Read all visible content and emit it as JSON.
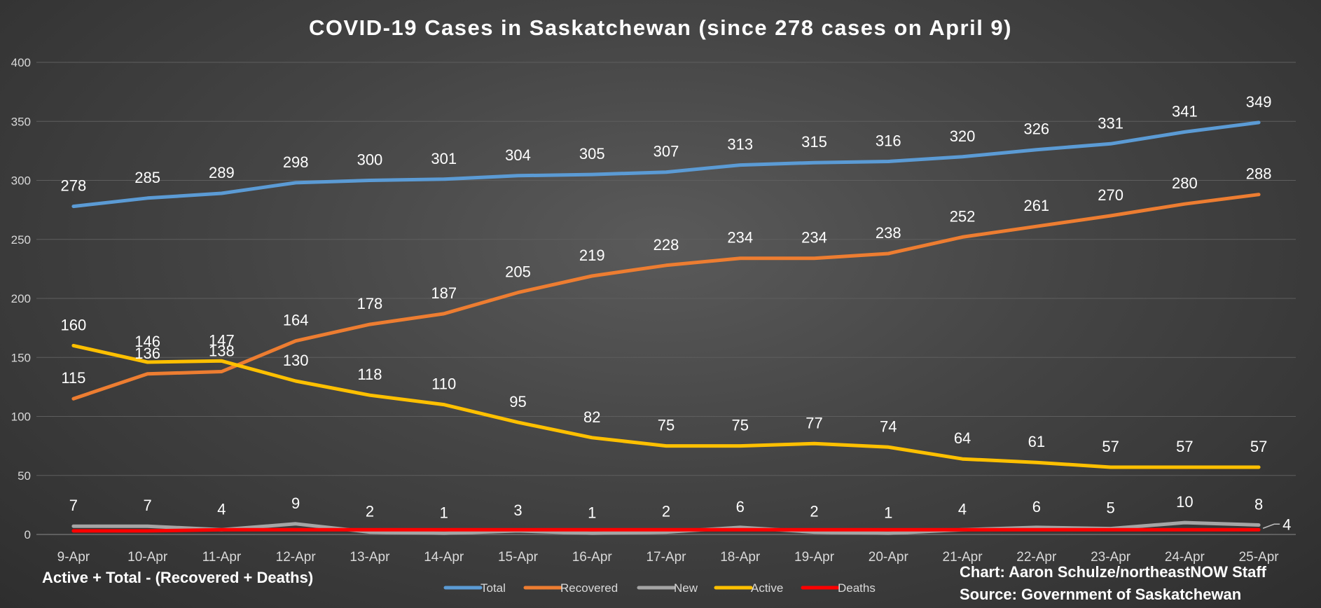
{
  "chart_data": {
    "type": "line",
    "title": "COVID-19 Cases in Saskatchewan (since 278 cases on April 9)",
    "xlabel": "",
    "ylabel": "",
    "ylim": [
      0,
      400
    ],
    "y_ticks": [
      0,
      50,
      100,
      150,
      200,
      250,
      300,
      350,
      400
    ],
    "grid": true,
    "legend_position": "bottom",
    "categories": [
      "9-Apr",
      "10-Apr",
      "11-Apr",
      "12-Apr",
      "13-Apr",
      "14-Apr",
      "15-Apr",
      "16-Apr",
      "17-Apr",
      "18-Apr",
      "19-Apr",
      "20-Apr",
      "21-Apr",
      "22-Apr",
      "23-Apr",
      "24-Apr",
      "25-Apr"
    ],
    "series": [
      {
        "name": "Total",
        "color": "#5b9bd5",
        "labels": "above",
        "values": [
          278,
          285,
          289,
          298,
          300,
          301,
          304,
          305,
          307,
          313,
          315,
          316,
          320,
          326,
          331,
          341,
          349
        ]
      },
      {
        "name": "Recovered",
        "color": "#ed7d31",
        "labels": "above",
        "values": [
          115,
          136,
          138,
          164,
          178,
          187,
          205,
          219,
          228,
          234,
          234,
          238,
          252,
          261,
          270,
          280,
          288
        ]
      },
      {
        "name": "New",
        "color": "#a5a5a5",
        "labels": "above",
        "values": [
          7,
          7,
          4,
          9,
          2,
          1,
          3,
          1,
          2,
          6,
          2,
          1,
          4,
          6,
          5,
          10,
          8
        ]
      },
      {
        "name": "Active",
        "color": "#ffc000",
        "labels": "above",
        "values": [
          160,
          146,
          147,
          130,
          118,
          110,
          95,
          82,
          75,
          75,
          77,
          74,
          64,
          61,
          57,
          57,
          57
        ]
      },
      {
        "name": "Deaths",
        "color": "#ff0000",
        "labels": "last",
        "values": [
          3,
          3,
          4,
          4,
          4,
          4,
          4,
          4,
          4,
          4,
          4,
          4,
          4,
          4,
          4,
          4,
          4
        ]
      }
    ]
  },
  "footnote": "Active + Total - (Recovered + Deaths)",
  "credit": "Chart: Aaron Schulze/northeastNOW Staff",
  "source": "Source: Government of Saskatchewan"
}
